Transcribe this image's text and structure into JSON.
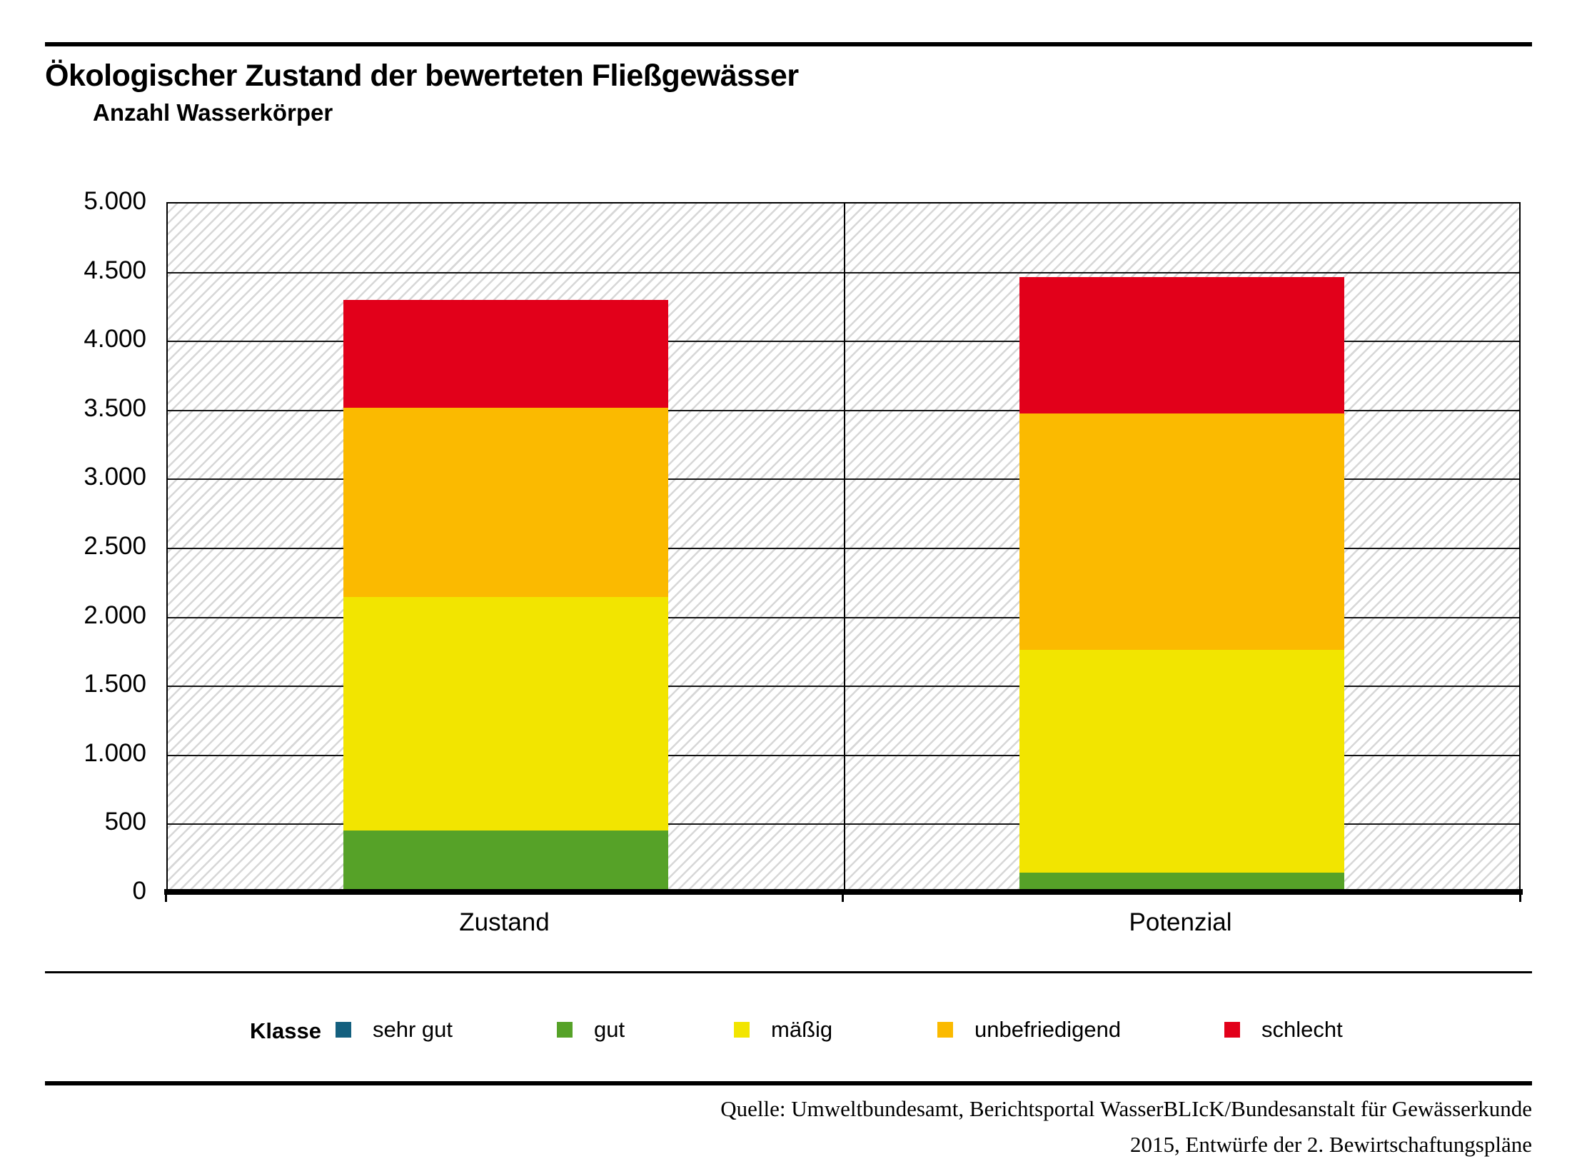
{
  "title": "Ökologischer Zustand der bewerteten Fließgewässer",
  "y_axis_title": "Anzahl Wasserkörper",
  "legend": {
    "title": "Klasse",
    "items": [
      {
        "label": "sehr gut",
        "color": "#14607f"
      },
      {
        "label": "gut",
        "color": "#56a228"
      },
      {
        "label": "mäßig",
        "color": "#f2e500"
      },
      {
        "label": "unbefriedigend",
        "color": "#fbba00"
      },
      {
        "label": "schlecht",
        "color": "#e2001a"
      }
    ]
  },
  "source": {
    "line1": "Quelle: Umweltbundesamt, Berichtsportal WasserBLIcK/Bundesanstalt für Gewässerkunde",
    "line2": "2015, Entwürfe der 2. Bewirtschaftungspläne"
  },
  "chart_data": {
    "type": "bar",
    "stacked": true,
    "title": "Ökologischer Zustand der bewerteten Fließgewässer",
    "ylabel": "Anzahl Wasserkörper",
    "categories": [
      "Zustand",
      "Potenzial"
    ],
    "series": [
      {
        "name": "sehr gut",
        "color": "#14607f",
        "values": [
          0,
          0
        ]
      },
      {
        "name": "gut",
        "color": "#56a228",
        "values": [
          435,
          130
        ]
      },
      {
        "name": "mäßig",
        "color": "#f2e500",
        "values": [
          1690,
          1615
        ]
      },
      {
        "name": "unbefriedigend",
        "color": "#fbba00",
        "values": [
          1375,
          1715
        ]
      },
      {
        "name": "schlecht",
        "color": "#e2001a",
        "values": [
          780,
          985
        ]
      }
    ],
    "totals": [
      4280,
      4445
    ],
    "ylim": [
      0,
      5000
    ],
    "y_tick_step": 500,
    "y_ticks": [
      "5.000",
      "4.500",
      "4.000",
      "3.500",
      "3.000",
      "2.500",
      "2.000",
      "1.500",
      "1.000",
      "500",
      "0"
    ],
    "grid": "horizontal",
    "plot_background": "diagonal-hatch",
    "legend_position": "bottom"
  }
}
